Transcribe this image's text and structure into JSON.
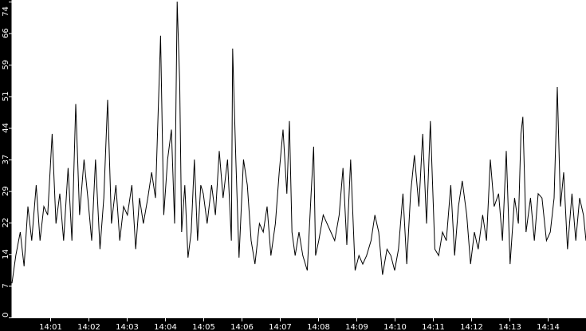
{
  "chart_data": {
    "type": "line",
    "title": "",
    "xlabel": "",
    "ylabel": "",
    "xlim": [
      "14:00:00",
      "14:15:00"
    ],
    "ylim": [
      0,
      74
    ],
    "grid": false,
    "colors": {
      "background": "#000000",
      "plot_area": "#ffffff",
      "line": "#000000",
      "axis_text": "#ffffff"
    },
    "x_tick_labels": [
      "14:01",
      "14:02",
      "14:03",
      "14:04",
      "14:05",
      "14:06",
      "14:07",
      "14:08",
      "14:09",
      "14:10",
      "14:11",
      "14:12",
      "14:13",
      "14:14"
    ],
    "y_tick_labels": [
      "0",
      "7",
      "14",
      "22",
      "29",
      "37",
      "44",
      "51",
      "59",
      "66",
      "74"
    ],
    "series": [
      {
        "points": [
          [
            "14:00:00",
            8
          ],
          [
            "14:00:06",
            14.5
          ],
          [
            "14:00:13",
            20
          ],
          [
            "14:00:19",
            12
          ],
          [
            "14:00:25",
            26
          ],
          [
            "14:00:31",
            18
          ],
          [
            "14:00:38",
            31
          ],
          [
            "14:00:44",
            18
          ],
          [
            "14:00:50",
            26
          ],
          [
            "14:00:56",
            24
          ],
          [
            "14:01:03",
            43
          ],
          [
            "14:01:09",
            22
          ],
          [
            "14:01:15",
            29
          ],
          [
            "14:01:21",
            18
          ],
          [
            "14:01:28",
            35
          ],
          [
            "14:01:34",
            18
          ],
          [
            "14:01:40",
            50
          ],
          [
            "14:01:46",
            24
          ],
          [
            "14:01:53",
            37
          ],
          [
            "14:01:59",
            28
          ],
          [
            "14:02:05",
            18
          ],
          [
            "14:02:11",
            37
          ],
          [
            "14:02:18",
            16
          ],
          [
            "14:02:24",
            28
          ],
          [
            "14:02:30",
            51
          ],
          [
            "14:02:36",
            22
          ],
          [
            "14:02:43",
            31
          ],
          [
            "14:02:49",
            18
          ],
          [
            "14:02:55",
            26
          ],
          [
            "14:03:01",
            24
          ],
          [
            "14:03:08",
            31
          ],
          [
            "14:03:14",
            16
          ],
          [
            "14:03:20",
            28
          ],
          [
            "14:03:26",
            22
          ],
          [
            "14:03:33",
            28
          ],
          [
            "14:03:39",
            34
          ],
          [
            "14:03:45",
            28
          ],
          [
            "14:03:53",
            66
          ],
          [
            "14:03:58",
            24
          ],
          [
            "14:04:04",
            37
          ],
          [
            "14:04:10",
            44
          ],
          [
            "14:04:15",
            22
          ],
          [
            "14:04:19",
            74
          ],
          [
            "14:04:23",
            55
          ],
          [
            "14:04:26",
            20
          ],
          [
            "14:04:31",
            31
          ],
          [
            "14:04:36",
            14
          ],
          [
            "14:04:41",
            20
          ],
          [
            "14:04:46",
            37
          ],
          [
            "14:04:51",
            18
          ],
          [
            "14:04:56",
            31
          ],
          [
            "14:05:00",
            29
          ],
          [
            "14:05:06",
            22
          ],
          [
            "14:05:13",
            31
          ],
          [
            "14:05:19",
            24
          ],
          [
            "14:05:25",
            39
          ],
          [
            "14:05:31",
            28
          ],
          [
            "14:05:38",
            37
          ],
          [
            "14:05:44",
            18
          ],
          [
            "14:05:46",
            63
          ],
          [
            "14:05:51",
            37
          ],
          [
            "14:05:56",
            14
          ],
          [
            "14:06:03",
            37
          ],
          [
            "14:06:09",
            31
          ],
          [
            "14:06:15",
            18
          ],
          [
            "14:06:21",
            12.5
          ],
          [
            "14:06:28",
            22
          ],
          [
            "14:06:34",
            20
          ],
          [
            "14:06:40",
            26
          ],
          [
            "14:06:46",
            14.5
          ],
          [
            "14:06:53",
            22
          ],
          [
            "14:06:59",
            34
          ],
          [
            "14:07:05",
            44
          ],
          [
            "14:07:11",
            29
          ],
          [
            "14:07:15",
            46
          ],
          [
            "14:07:19",
            20
          ],
          [
            "14:07:24",
            14.5
          ],
          [
            "14:07:30",
            20
          ],
          [
            "14:07:36",
            14.5
          ],
          [
            "14:07:43",
            11
          ],
          [
            "14:07:49",
            29
          ],
          [
            "14:07:53",
            40
          ],
          [
            "14:07:56",
            14.5
          ],
          [
            "14:08:01",
            18
          ],
          [
            "14:08:08",
            24
          ],
          [
            "14:08:14",
            22
          ],
          [
            "14:08:20",
            20
          ],
          [
            "14:08:26",
            18
          ],
          [
            "14:08:33",
            24
          ],
          [
            "14:08:39",
            35
          ],
          [
            "14:08:45",
            17
          ],
          [
            "14:08:51",
            37
          ],
          [
            "14:08:58",
            11
          ],
          [
            "14:09:04",
            14.5
          ],
          [
            "14:09:10",
            12.5
          ],
          [
            "14:09:16",
            14.5
          ],
          [
            "14:09:23",
            18
          ],
          [
            "14:09:29",
            24
          ],
          [
            "14:09:35",
            20
          ],
          [
            "14:09:41",
            10
          ],
          [
            "14:09:48",
            16
          ],
          [
            "14:09:54",
            14.5
          ],
          [
            "14:10:00",
            11
          ],
          [
            "14:10:06",
            16
          ],
          [
            "14:10:13",
            29
          ],
          [
            "14:10:19",
            12.5
          ],
          [
            "14:10:25",
            29
          ],
          [
            "14:10:31",
            38
          ],
          [
            "14:10:38",
            26
          ],
          [
            "14:10:44",
            43
          ],
          [
            "14:10:50",
            22
          ],
          [
            "14:10:56",
            46
          ],
          [
            "14:11:03",
            16
          ],
          [
            "14:11:09",
            14.5
          ],
          [
            "14:11:15",
            20
          ],
          [
            "14:11:21",
            18
          ],
          [
            "14:11:28",
            31
          ],
          [
            "14:11:34",
            14.5
          ],
          [
            "14:11:40",
            26
          ],
          [
            "14:11:46",
            32
          ],
          [
            "14:11:53",
            24
          ],
          [
            "14:11:59",
            12.5
          ],
          [
            "14:12:05",
            20
          ],
          [
            "14:12:11",
            16
          ],
          [
            "14:12:18",
            24
          ],
          [
            "14:12:24",
            18
          ],
          [
            "14:12:30",
            37
          ],
          [
            "14:12:36",
            26
          ],
          [
            "14:12:43",
            29
          ],
          [
            "14:12:49",
            18
          ],
          [
            "14:12:55",
            39
          ],
          [
            "14:13:01",
            12.5
          ],
          [
            "14:13:08",
            28
          ],
          [
            "14:13:14",
            22
          ],
          [
            "14:13:18",
            43
          ],
          [
            "14:13:21",
            47
          ],
          [
            "14:13:26",
            20
          ],
          [
            "14:13:33",
            28
          ],
          [
            "14:13:39",
            18
          ],
          [
            "14:13:45",
            29
          ],
          [
            "14:13:51",
            28
          ],
          [
            "14:13:58",
            18
          ],
          [
            "14:14:04",
            20
          ],
          [
            "14:14:10",
            28
          ],
          [
            "14:14:15",
            54
          ],
          [
            "14:14:20",
            26
          ],
          [
            "14:14:25",
            34
          ],
          [
            "14:14:31",
            16
          ],
          [
            "14:14:38",
            29
          ],
          [
            "14:14:44",
            18
          ],
          [
            "14:14:50",
            28
          ],
          [
            "14:14:56",
            24
          ],
          [
            "14:15:00",
            18
          ]
        ]
      }
    ]
  }
}
